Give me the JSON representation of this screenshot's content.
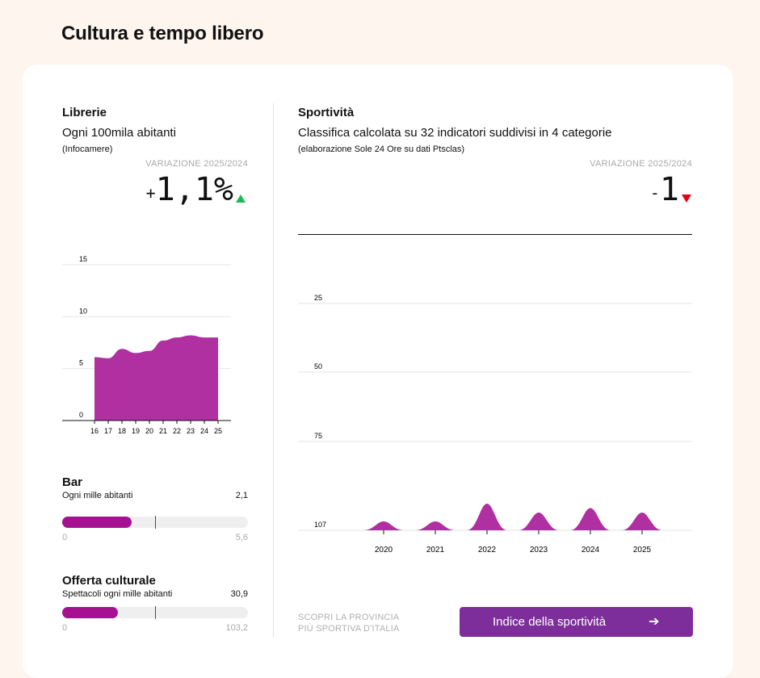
{
  "section_title": "Cultura e tempo libero",
  "librerie": {
    "title": "Librerie",
    "subtitle": "Ogni 100mila abitanti",
    "source": "(Infocamere)",
    "variation_label": "VARIAZIONE 2025/2024",
    "variation_sign": "+",
    "variation_value": "1,1%",
    "variation_direction": "up",
    "up_color": "#1db954"
  },
  "sportivita": {
    "title": "Sportività",
    "subtitle": "Classifica calcolata su 32 indicatori suddivisi in 4 categorie",
    "source": "(elaborazione Sole 24 Ore su dati Ptsclas)",
    "variation_label": "VARIAZIONE 2025/2024",
    "variation_sign": "-",
    "variation_value": "1",
    "variation_direction": "down",
    "down_color": "#e2001a"
  },
  "bar": {
    "title": "Bar",
    "subtitle": "Ogni mille abitanti",
    "value": "2,1",
    "min": "0",
    "max": "5,6",
    "fill_fraction": 0.375,
    "marker_fraction": 0.5
  },
  "offerta": {
    "title": "Offerta culturale",
    "subtitle": "Spettacoli ogni mille abitanti",
    "value": "30,9",
    "min": "0",
    "max": "103,2",
    "fill_fraction": 0.3,
    "marker_fraction": 0.5
  },
  "cta": {
    "text_line1": "SCOPRI LA PROVINCIA",
    "text_line2": "PIÙ SPORTIVA D'ITALIA",
    "button_label": "Indice della sportività",
    "button_icon": "arrow-right-icon",
    "arrow_glyph": "➔"
  },
  "colors": {
    "accent": "#a51190",
    "area_fill": "#b02fa1",
    "button_bg": "#7d2e9b",
    "page_bg": "#fdf5ee"
  },
  "chart_data": [
    {
      "type": "area",
      "x": [
        "16",
        "17",
        "18",
        "19",
        "20",
        "21",
        "22",
        "23",
        "24",
        "25"
      ],
      "values": [
        6.1,
        6.0,
        6.9,
        6.5,
        6.7,
        7.7,
        8.0,
        8.2,
        8.0,
        8.0
      ],
      "yticks": [
        "0",
        "5",
        "10",
        "15"
      ],
      "ylim": [
        0,
        15
      ]
    },
    {
      "type": "area",
      "x": [
        "2020",
        "2021",
        "2022",
        "2023",
        "2024",
        "2025"
      ],
      "values": [
        105,
        105,
        101,
        103,
        102,
        103
      ],
      "yticks": [
        "25",
        "50",
        "75",
        "107"
      ],
      "ylim": [
        107,
        1
      ],
      "inverted": true
    }
  ]
}
